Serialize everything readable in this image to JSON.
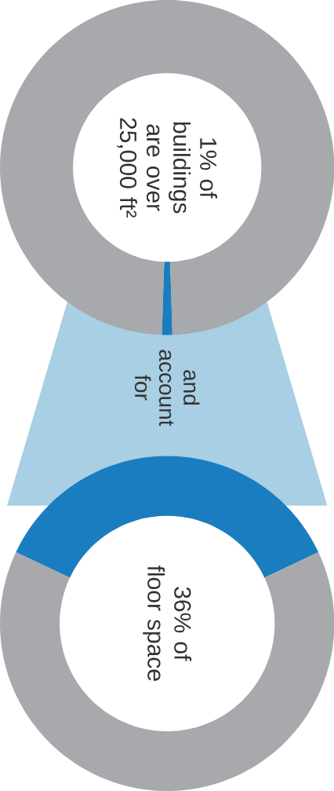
{
  "chart_data": [
    {
      "type": "donut",
      "title": "1% of buildings are over 25,000 ft²",
      "categories": [
        null,
        null
      ],
      "values": [
        1,
        99
      ],
      "colors": [
        "#1a7dbf",
        "#a7a9ac"
      ],
      "annotations": [
        "and account for"
      ]
    },
    {
      "type": "donut",
      "title": "36% of floor space",
      "categories": [
        null,
        null
      ],
      "values": [
        36,
        64
      ],
      "colors": [
        "#1a7dbf",
        "#a7a9ac"
      ]
    }
  ]
}
